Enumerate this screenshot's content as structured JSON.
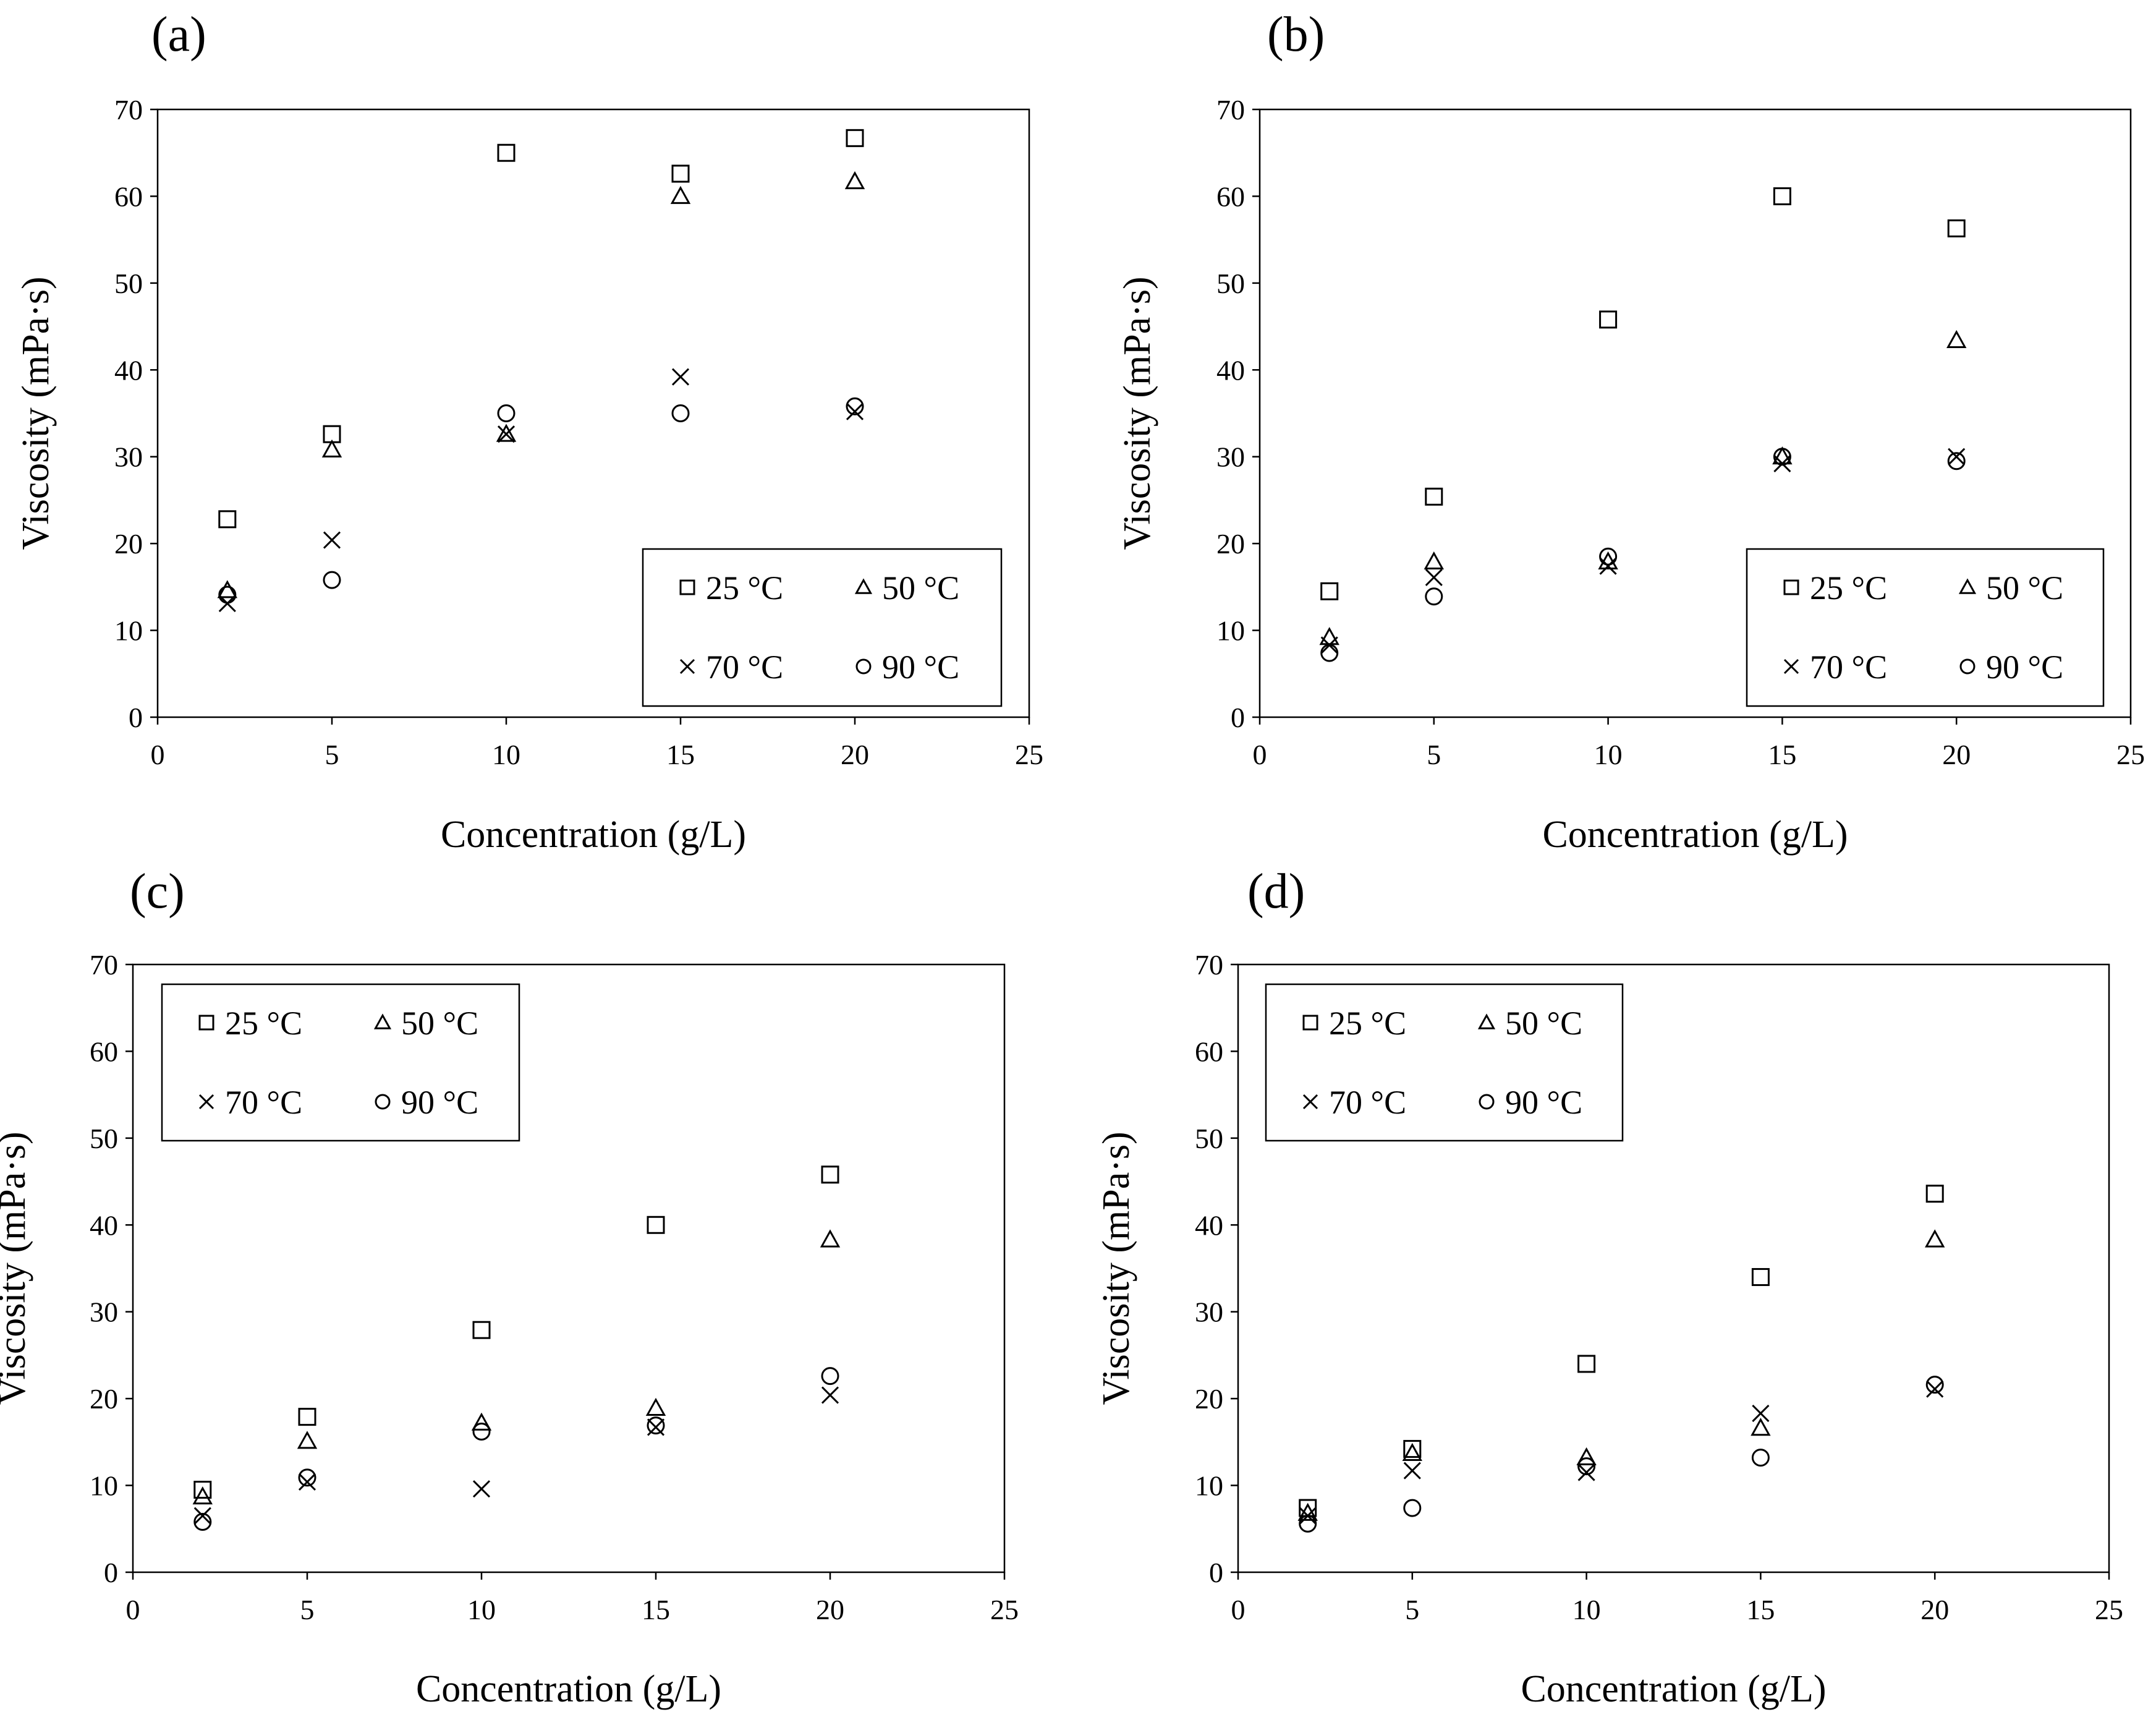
{
  "chart_data": [
    {
      "type": "scatter",
      "panel_label": "(a)",
      "xlabel": "Concentration (g/L)",
      "ylabel": "Viscosity (mPa·s)",
      "xlim": [
        0,
        25
      ],
      "ylim": [
        0,
        70
      ],
      "xticks": [
        "0",
        "5",
        "10",
        "15",
        "20",
        "25"
      ],
      "yticks": [
        "0",
        "10",
        "20",
        "30",
        "40",
        "50",
        "60",
        "70"
      ],
      "legend_position": "bottom-right",
      "x": [
        2,
        5,
        10,
        15,
        20
      ],
      "series": [
        {
          "name": "25 °C",
          "marker": "square",
          "values": [
            22.8,
            32.6,
            65.0,
            62.6,
            66.7
          ]
        },
        {
          "name": "50 °C",
          "marker": "triangle",
          "values": [
            14.6,
            30.8,
            32.6,
            60.0,
            61.7
          ]
        },
        {
          "name": "70 °C",
          "marker": "cross",
          "values": [
            13.1,
            20.4,
            32.6,
            39.2,
            35.2
          ]
        },
        {
          "name": "90 °C",
          "marker": "circle",
          "values": [
            14.1,
            15.8,
            35.0,
            35.0,
            35.8
          ]
        }
      ]
    },
    {
      "type": "scatter",
      "panel_label": "(b)",
      "xlabel": "Concentration (g/L)",
      "ylabel": "Viscosity (mPa·s)",
      "xlim": [
        0,
        25
      ],
      "ylim": [
        0,
        70
      ],
      "xticks": [
        "0",
        "5",
        "10",
        "15",
        "20",
        "25"
      ],
      "yticks": [
        "0",
        "10",
        "20",
        "30",
        "40",
        "50",
        "60",
        "70"
      ],
      "legend_position": "bottom-right",
      "x": [
        2,
        5,
        10,
        15,
        20
      ],
      "series": [
        {
          "name": "25 °C",
          "marker": "square",
          "values": [
            14.5,
            25.4,
            45.8,
            60.0,
            56.3
          ]
        },
        {
          "name": "50 °C",
          "marker": "triangle",
          "values": [
            9.2,
            17.9,
            17.9,
            30.0,
            43.4
          ]
        },
        {
          "name": "70 °C",
          "marker": "cross",
          "values": [
            8.3,
            16.1,
            17.4,
            29.2,
            30.0
          ]
        },
        {
          "name": "90 °C",
          "marker": "circle",
          "values": [
            7.4,
            13.9,
            18.5,
            30.0,
            29.5
          ]
        }
      ]
    },
    {
      "type": "scatter",
      "panel_label": "(c)",
      "xlabel": "Concentration (g/L)",
      "ylabel": "Viscosity (mPa·s)",
      "xlim": [
        0,
        25
      ],
      "ylim": [
        0,
        70
      ],
      "xticks": [
        "0",
        "5",
        "10",
        "15",
        "20",
        "25"
      ],
      "yticks": [
        "0",
        "10",
        "20",
        "30",
        "40",
        "50",
        "60",
        "70"
      ],
      "legend_position": "top-left",
      "x": [
        2,
        5,
        10,
        15,
        20
      ],
      "series": [
        {
          "name": "25 °C",
          "marker": "square",
          "values": [
            9.5,
            17.9,
            27.9,
            40.0,
            45.8
          ]
        },
        {
          "name": "50 °C",
          "marker": "triangle",
          "values": [
            8.7,
            15.1,
            17.2,
            18.9,
            38.3
          ]
        },
        {
          "name": "70 °C",
          "marker": "cross",
          "values": [
            6.5,
            10.4,
            9.6,
            16.7,
            20.4
          ]
        },
        {
          "name": "90 °C",
          "marker": "circle",
          "values": [
            5.8,
            10.9,
            16.2,
            16.9,
            22.6
          ]
        }
      ]
    },
    {
      "type": "scatter",
      "panel_label": "(d)",
      "xlabel": "Concentration (g/L)",
      "ylabel": "Viscosity (mPa·s)",
      "xlim": [
        0,
        25
      ],
      "ylim": [
        0,
        70
      ],
      "xticks": [
        "0",
        "5",
        "10",
        "15",
        "20",
        "25"
      ],
      "yticks": [
        "0",
        "10",
        "20",
        "30",
        "40",
        "50",
        "60",
        "70"
      ],
      "legend_position": "top-left",
      "x": [
        2,
        5,
        10,
        15,
        20
      ],
      "series": [
        {
          "name": "25 °C",
          "marker": "square",
          "values": [
            7.4,
            14.2,
            24.0,
            34.0,
            43.6
          ]
        },
        {
          "name": "50 °C",
          "marker": "triangle",
          "values": [
            6.8,
            13.7,
            13.2,
            16.6,
            38.3
          ]
        },
        {
          "name": "70 °C",
          "marker": "cross",
          "values": [
            6.5,
            11.7,
            11.5,
            18.3,
            21.1
          ]
        },
        {
          "name": "90 °C",
          "marker": "circle",
          "values": [
            5.6,
            7.4,
            12.2,
            13.2,
            21.6
          ]
        }
      ]
    }
  ]
}
